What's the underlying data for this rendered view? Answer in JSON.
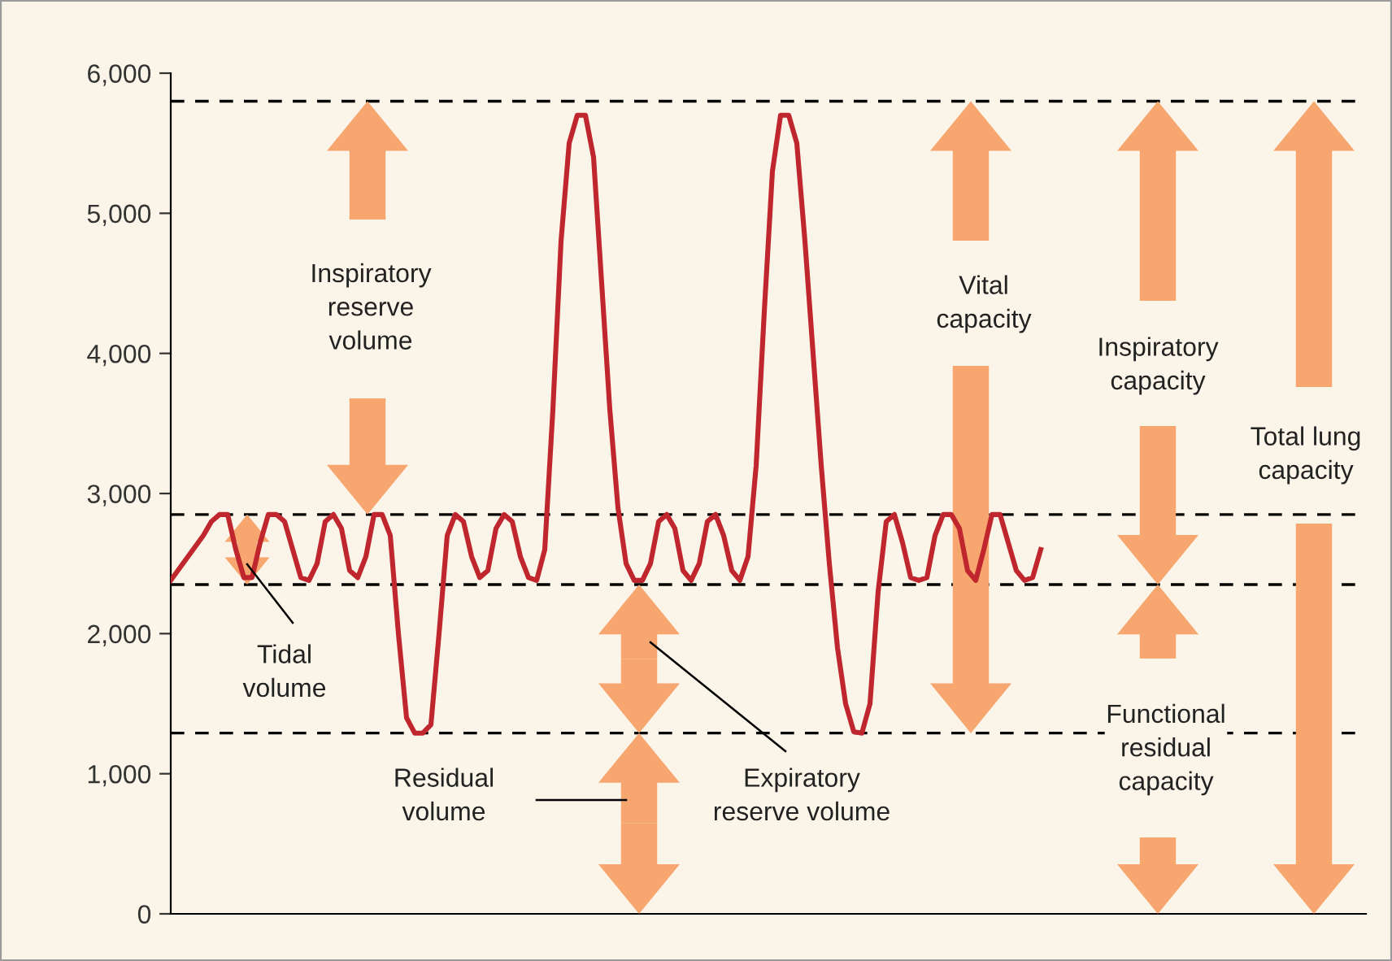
{
  "chart_data": {
    "type": "line",
    "categories": [
      null,
      null,
      null,
      null,
      null,
      null,
      null,
      null,
      null,
      null,
      null,
      null,
      null,
      null,
      null,
      null,
      null,
      null,
      null,
      null,
      null,
      null,
      null,
      null,
      null,
      null,
      null,
      null,
      null,
      null,
      null,
      null,
      null,
      null,
      null,
      null,
      null,
      null,
      null,
      null,
      null,
      null,
      null,
      null,
      null,
      null,
      null,
      null,
      null,
      null,
      null,
      null,
      null,
      null,
      null,
      null,
      null,
      null,
      null,
      null,
      null,
      null,
      null,
      null,
      null,
      null,
      null,
      null,
      null,
      null,
      null,
      null,
      null,
      null,
      null,
      null,
      null,
      null,
      null,
      null,
      null,
      null,
      null,
      null,
      null,
      null,
      null,
      null,
      null,
      null,
      null,
      null,
      null,
      null,
      null,
      null,
      null,
      null,
      null,
      null,
      null,
      null,
      null,
      null,
      null,
      null,
      null,
      null
    ],
    "series": [
      {
        "color": "#c0262d",
        "values": [
          2380,
          2460,
          2540,
          2620,
          2700,
          2800,
          2850,
          2850,
          2600,
          2400,
          2400,
          2650,
          2850,
          2850,
          2800,
          2600,
          2400,
          2380,
          2500,
          2800,
          2850,
          2750,
          2450,
          2400,
          2550,
          2850,
          2850,
          2700,
          2000,
          1400,
          1290,
          1290,
          1350,
          2000,
          2700,
          2850,
          2800,
          2550,
          2400,
          2450,
          2750,
          2850,
          2800,
          2550,
          2400,
          2380,
          2600,
          3600,
          4800,
          5500,
          5700,
          5700,
          5400,
          4500,
          3600,
          2900,
          2500,
          2380,
          2380,
          2500,
          2800,
          2850,
          2750,
          2450,
          2380,
          2500,
          2800,
          2850,
          2700,
          2450,
          2380,
          2550,
          3200,
          4300,
          5300,
          5700,
          5700,
          5500,
          4800,
          4000,
          3200,
          2500,
          1900,
          1500,
          1300,
          1290,
          1500,
          2300,
          2800,
          2850,
          2650,
          2400,
          2380,
          2400,
          2700,
          2850,
          2850,
          2750,
          2450,
          2380,
          2600,
          2850,
          2850,
          2650,
          2450,
          2380,
          2400,
          2600
        ]
      }
    ],
    "ylim": [
      0,
      6000
    ],
    "yticks": [
      0,
      {
        "value": 1000,
        "label": "1,000"
      },
      {
        "value": 2000,
        "label": "2,000"
      },
      {
        "value": 3000,
        "label": "3,000"
      },
      {
        "value": 4000,
        "label": "4,000"
      },
      {
        "value": 5000,
        "label": "5,000"
      },
      {
        "value": 6000,
        "label": "6,000"
      }
    ],
    "tick_labels": "y",
    "grid": false,
    "ref_lines": [
      {
        "axis": "y",
        "value": 5800,
        "color": "#000000",
        "line_style": "dashed"
      },
      {
        "axis": "y",
        "value": 2850,
        "color": "#000000",
        "line_style": "dashed"
      },
      {
        "axis": "y",
        "value": 2350,
        "color": "#000000",
        "line_style": "dashed"
      },
      {
        "axis": "y",
        "value": 1290,
        "color": "#000000",
        "line_style": "dashed"
      }
    ],
    "annotations": [
      "Inspiratory\nreserve\nvolume",
      "Tidal\nvolume",
      "Residual\nvolume",
      "Expiratory\nreserve volume",
      "Vital\ncapacity",
      "Inspiratory\ncapacity",
      "Total lung\ncapacity",
      "Functional\nresidual\ncapacity"
    ]
  }
}
